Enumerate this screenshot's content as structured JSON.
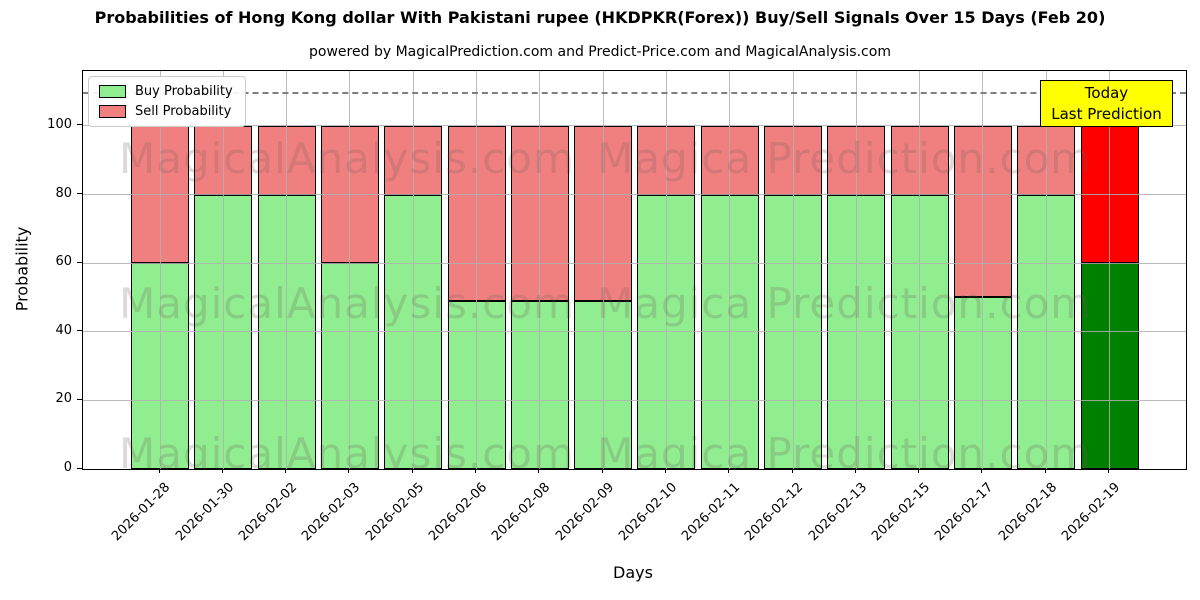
{
  "chart_data": {
    "type": "bar",
    "stacked": true,
    "title": "Probabilities of Hong Kong dollar With Pakistani rupee (HKDPKR(Forex)) Buy/Sell Signals Over 15 Days (Feb 20)",
    "subtitle": "powered by MagicalPrediction.com and Predict-Price.com and MagicalAnalysis.com",
    "xlabel": "Days",
    "ylabel": "Probability",
    "categories": [
      "2026-01-28",
      "2026-01-30",
      "2026-02-02",
      "2026-02-03",
      "2026-02-05",
      "2026-02-06",
      "2026-02-08",
      "2026-02-09",
      "2026-02-10",
      "2026-02-11",
      "2026-02-12",
      "2026-02-13",
      "2026-02-15",
      "2026-02-17",
      "2026-02-18",
      "2026-02-19"
    ],
    "series": [
      {
        "name": "Buy Probability",
        "color": "#90ee90",
        "last_bar_color": "#008000",
        "values": [
          60,
          80,
          80,
          60,
          80,
          49,
          49,
          49,
          80,
          80,
          80,
          80,
          80,
          50,
          80,
          60
        ]
      },
      {
        "name": "Sell Probability",
        "color": "#f08080",
        "last_bar_color": "#ff0000",
        "values": [
          40,
          20,
          20,
          40,
          20,
          51,
          51,
          51,
          20,
          20,
          20,
          20,
          20,
          50,
          20,
          40
        ]
      }
    ],
    "yticks": [
      0,
      20,
      40,
      60,
      80,
      100
    ],
    "ylim": [
      0,
      116
    ],
    "grid": true,
    "legend_position": "upper left",
    "bar_edge_color": "#000000",
    "threshold_line": {
      "y": 110,
      "style": "dashed",
      "color": "#7f7f7f"
    }
  },
  "legend": {
    "items": [
      {
        "label": "Buy Probability"
      },
      {
        "label": "Sell Probability"
      }
    ]
  },
  "annotation": {
    "line1": "Today",
    "line2": "Last Prediction",
    "bg_color": "#ffff00",
    "border_color": "#000000"
  },
  "watermarks": {
    "left_text": "MagicalAnalysis.com",
    "right_text": "Magica Prediction.com"
  }
}
